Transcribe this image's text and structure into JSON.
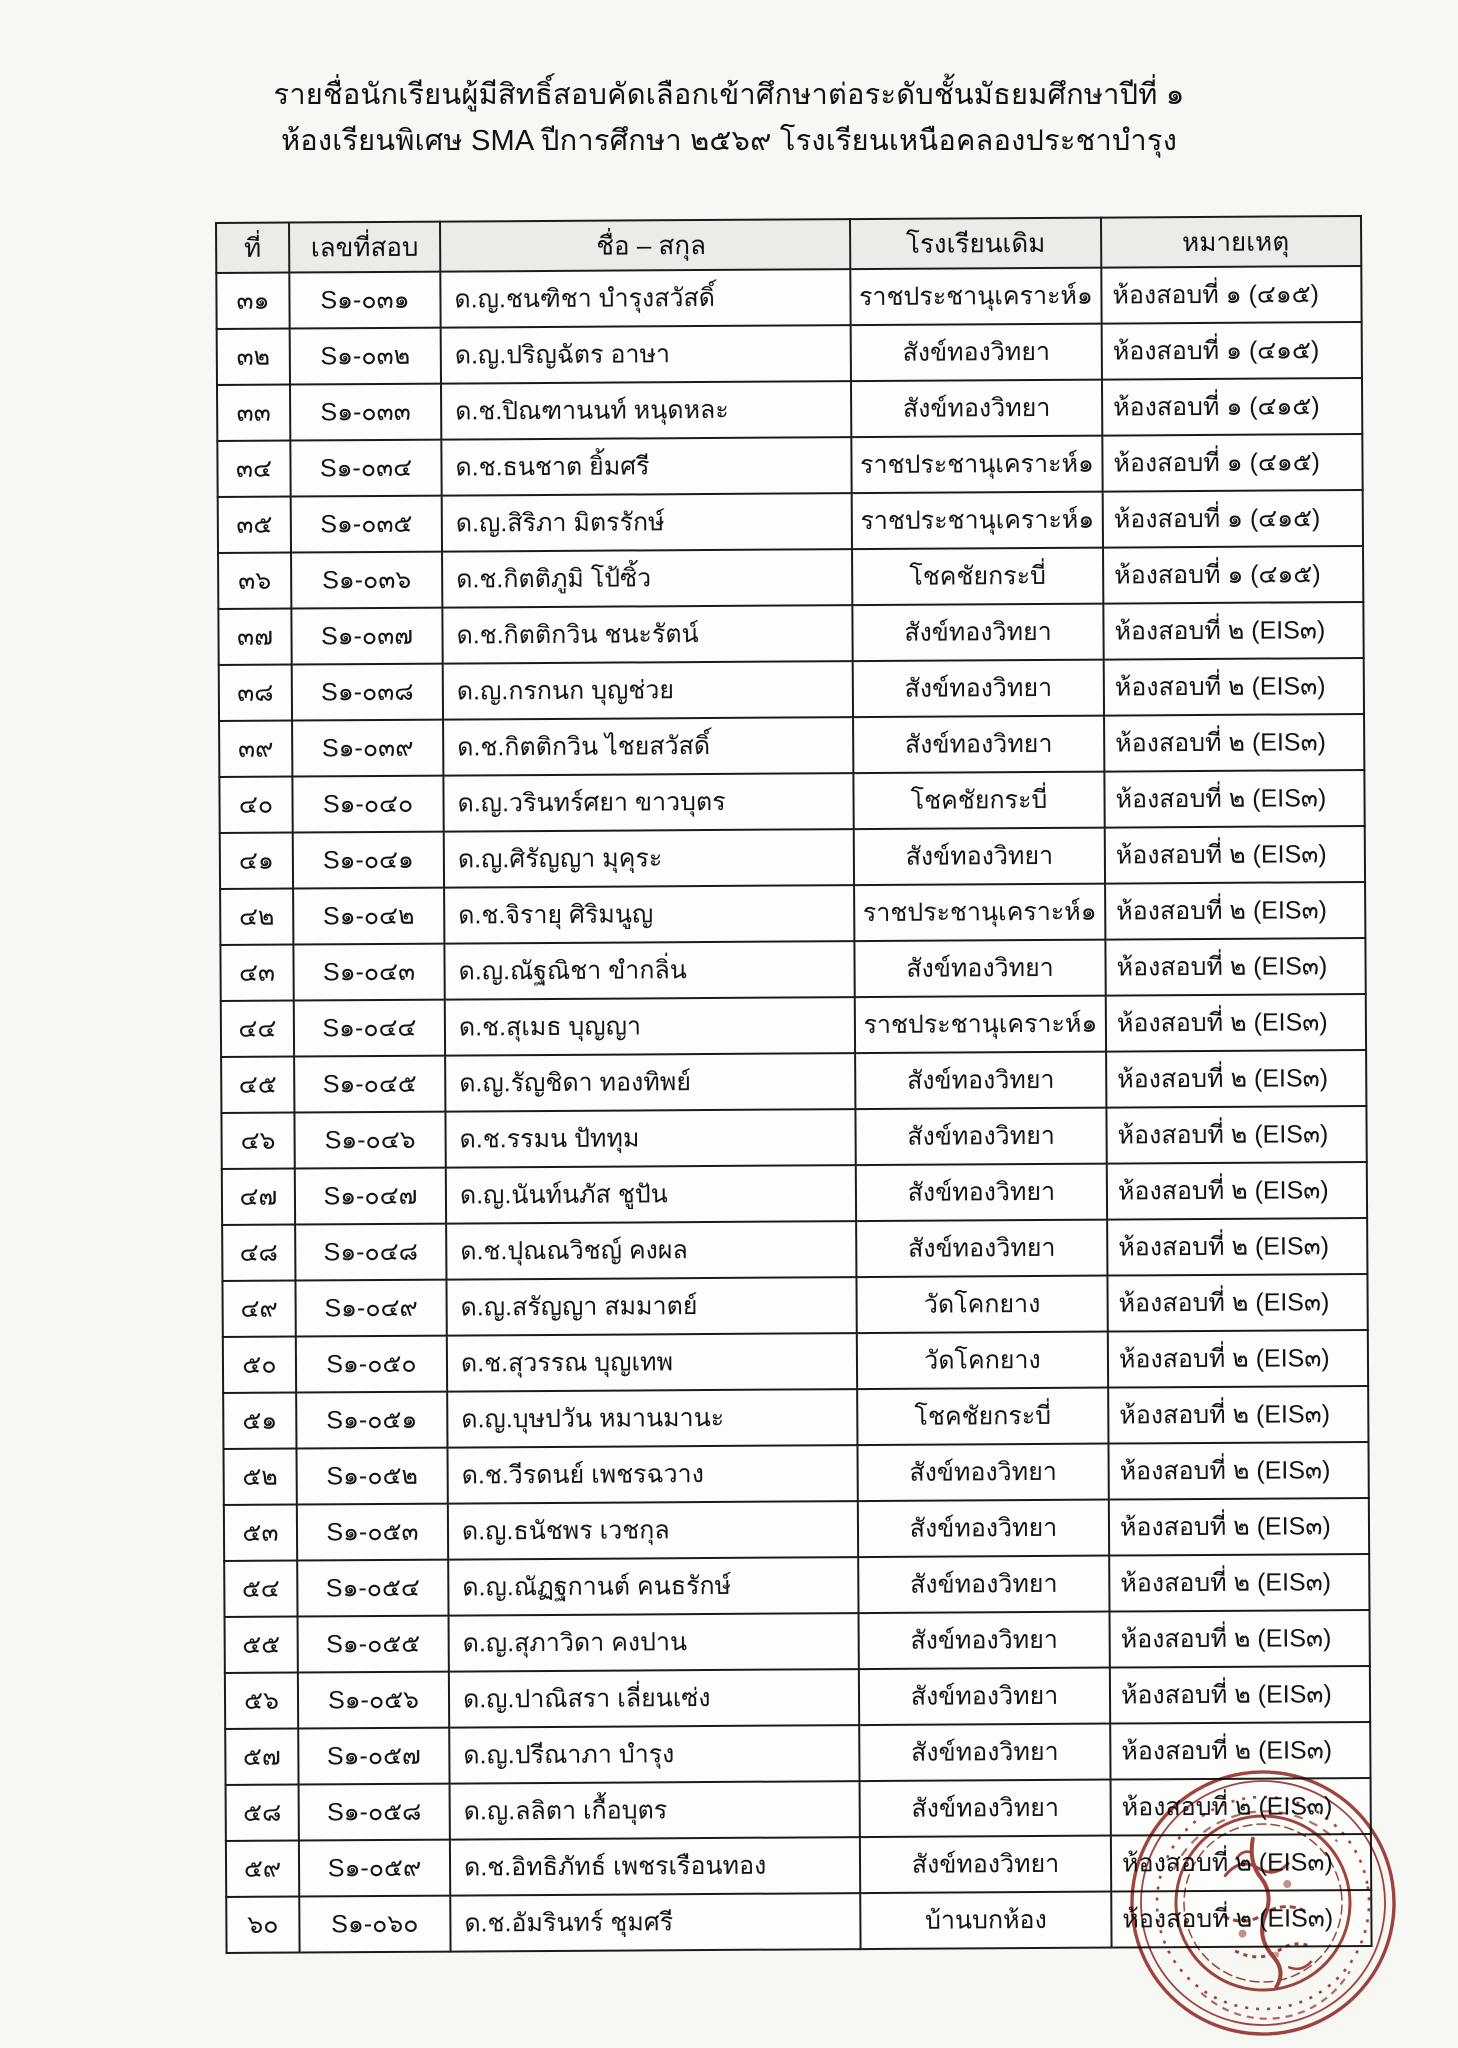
{
  "page": {
    "title_line1": "รายชื่อนักเรียนผู้มีสิทธิ์สอบคัดเลือกเข้าศึกษาต่อระดับชั้นมัธยมศึกษาปีที่ ๑",
    "title_line2": "ห้องเรียนพิเศษ SMA ปีการศึกษา ๒๕๖๙ โรงเรียนเหนือคลองประชาบำรุง"
  },
  "table": {
    "headers": [
      "ที่",
      "เลขที่สอบ",
      "ชื่อ – สกุล",
      "โรงเรียนเดิม",
      "หมายเหตุ"
    ],
    "rows": [
      [
        "๓๑",
        "S๑-๐๓๑",
        "ด.ญ.ชนฑิชา  บำรุงสวัสดิ์",
        "ราชประชานุเคราะห์๑",
        "ห้องสอบที่ ๑ (๔๑๕)"
      ],
      [
        "๓๒",
        "S๑-๐๓๒",
        "ด.ญ.ปริญฉัตร  อาษา",
        "สังข์ทองวิทยา",
        "ห้องสอบที่ ๑ (๔๑๕)"
      ],
      [
        "๓๓",
        "S๑-๐๓๓",
        "ด.ช.ปิณฑานนท์  หนุดหละ",
        "สังข์ทองวิทยา",
        "ห้องสอบที่ ๑ (๔๑๕)"
      ],
      [
        "๓๔",
        "S๑-๐๓๔",
        "ด.ช.ธนชาต  ยิ้มศรี",
        "ราชประชานุเคราะห์๑",
        "ห้องสอบที่ ๑ (๔๑๕)"
      ],
      [
        "๓๕",
        "S๑-๐๓๕",
        "ด.ญ.สิริภา  มิตรรักษ์",
        "ราชประชานุเคราะห์๑",
        "ห้องสอบที่ ๑ (๔๑๕)"
      ],
      [
        "๓๖",
        "S๑-๐๓๖",
        "ด.ช.กิตติภูมิ  โป้ซิ้ว",
        "โชคชัยกระบี่",
        "ห้องสอบที่ ๑ (๔๑๕)"
      ],
      [
        "๓๗",
        "S๑-๐๓๗",
        "ด.ช.กิตติกวิน  ชนะรัตน์",
        "สังข์ทองวิทยา",
        "ห้องสอบที่ ๒ (EIS๓)"
      ],
      [
        "๓๘",
        "S๑-๐๓๘",
        "ด.ญ.กรกนก  บุญช่วย",
        "สังข์ทองวิทยา",
        "ห้องสอบที่ ๒ (EIS๓)"
      ],
      [
        "๓๙",
        "S๑-๐๓๙",
        "ด.ช.กิตติกวิน  ไชยสวัสดิ์",
        "สังข์ทองวิทยา",
        "ห้องสอบที่ ๒ (EIS๓)"
      ],
      [
        "๔๐",
        "S๑-๐๔๐",
        "ด.ญ.วรินทร์ศยา  ขาวบุตร",
        "โชคชัยกระบี่",
        "ห้องสอบที่ ๒ (EIS๓)"
      ],
      [
        "๔๑",
        "S๑-๐๔๑",
        "ด.ญ.ศิรัญญา  มุคุระ",
        "สังข์ทองวิทยา",
        "ห้องสอบที่ ๒ (EIS๓)"
      ],
      [
        "๔๒",
        "S๑-๐๔๒",
        "ด.ช.จิรายุ  ศิริมนูญ",
        "ราชประชานุเคราะห์๑",
        "ห้องสอบที่ ๒ (EIS๓)"
      ],
      [
        "๔๓",
        "S๑-๐๔๓",
        "ด.ญ.ณัฐณิชา  ขำกลิ่น",
        "สังข์ทองวิทยา",
        "ห้องสอบที่ ๒ (EIS๓)"
      ],
      [
        "๔๔",
        "S๑-๐๔๔",
        "ด.ช.สุเมธ  บุญญา",
        "ราชประชานุเคราะห์๑",
        "ห้องสอบที่ ๒ (EIS๓)"
      ],
      [
        "๔๕",
        "S๑-๐๔๕",
        "ด.ญ.รัญชิดา  ทองทิพย์",
        "สังข์ทองวิทยา",
        "ห้องสอบที่ ๒ (EIS๓)"
      ],
      [
        "๔๖",
        "S๑-๐๔๖",
        "ด.ช.รรมน  ปัททุม",
        "สังข์ทองวิทยา",
        "ห้องสอบที่ ๒ (EIS๓)"
      ],
      [
        "๔๗",
        "S๑-๐๔๗",
        "ด.ญ.นันท์นภัส  ชูปัน",
        "สังข์ทองวิทยา",
        "ห้องสอบที่ ๒ (EIS๓)"
      ],
      [
        "๔๘",
        "S๑-๐๔๘",
        "ด.ช.ปุณณวิชญ์  คงผล",
        "สังข์ทองวิทยา",
        "ห้องสอบที่ ๒ (EIS๓)"
      ],
      [
        "๔๙",
        "S๑-๐๔๙",
        "ด.ญ.สรัญญา  สมมาตย์",
        "วัดโคกยาง",
        "ห้องสอบที่ ๒ (EIS๓)"
      ],
      [
        "๕๐",
        "S๑-๐๕๐",
        "ด.ช.สุวรรณ  บุญเทพ",
        "วัดโคกยาง",
        "ห้องสอบที่ ๒ (EIS๓)"
      ],
      [
        "๕๑",
        "S๑-๐๕๑",
        "ด.ญ.บุษปวัน  หมานมานะ",
        "โชคชัยกระบี่",
        "ห้องสอบที่ ๒ (EIS๓)"
      ],
      [
        "๕๒",
        "S๑-๐๕๒",
        "ด.ช.วีรดนย์  เพชรฉวาง",
        "สังข์ทองวิทยา",
        "ห้องสอบที่ ๒ (EIS๓)"
      ],
      [
        "๕๓",
        "S๑-๐๕๓",
        "ด.ญ.ธนัชพร  เวชกุล",
        "สังข์ทองวิทยา",
        "ห้องสอบที่ ๒ (EIS๓)"
      ],
      [
        "๕๔",
        "S๑-๐๕๔",
        "ด.ญ.ณัฏฐกานต์  คนธรักษ์",
        "สังข์ทองวิทยา",
        "ห้องสอบที่ ๒ (EIS๓)"
      ],
      [
        "๕๕",
        "S๑-๐๕๕",
        "ด.ญ.สุภาวิดา  คงปาน",
        "สังข์ทองวิทยา",
        "ห้องสอบที่ ๒ (EIS๓)"
      ],
      [
        "๕๖",
        "S๑-๐๕๖",
        "ด.ญ.ปาณิสรา  เลี่ยนเซ่ง",
        "สังข์ทองวิทยา",
        "ห้องสอบที่ ๒ (EIS๓)"
      ],
      [
        "๕๗",
        "S๑-๐๕๗",
        "ด.ญ.ปรีณาภา  บำรุง",
        "สังข์ทองวิทยา",
        "ห้องสอบที่ ๒ (EIS๓)"
      ],
      [
        "๕๘",
        "S๑-๐๕๘",
        "ด.ญ.ลลิตา  เกื้อบุตร",
        "สังข์ทองวิทยา",
        "ห้องสอบที่ ๒ (EIS๓)"
      ],
      [
        "๕๙",
        "S๑-๐๕๙",
        "ด.ช.อิทธิภัทธ์  เพชรเรือนทอง",
        "สังข์ทองวิทยา",
        "ห้องสอบที่ ๒ (EIS๓)"
      ],
      [
        "๖๐",
        "S๑-๐๖๐",
        "ด.ช.อัมรินทร์  ชุมศรี",
        "บ้านบกห้อง",
        "ห้องสอบที่ ๒ (EIS๓)"
      ]
    ]
  },
  "colors": {
    "paper": "#f7f7f4",
    "ink": "#1b1b1b",
    "stamp": "#8c1b14"
  }
}
